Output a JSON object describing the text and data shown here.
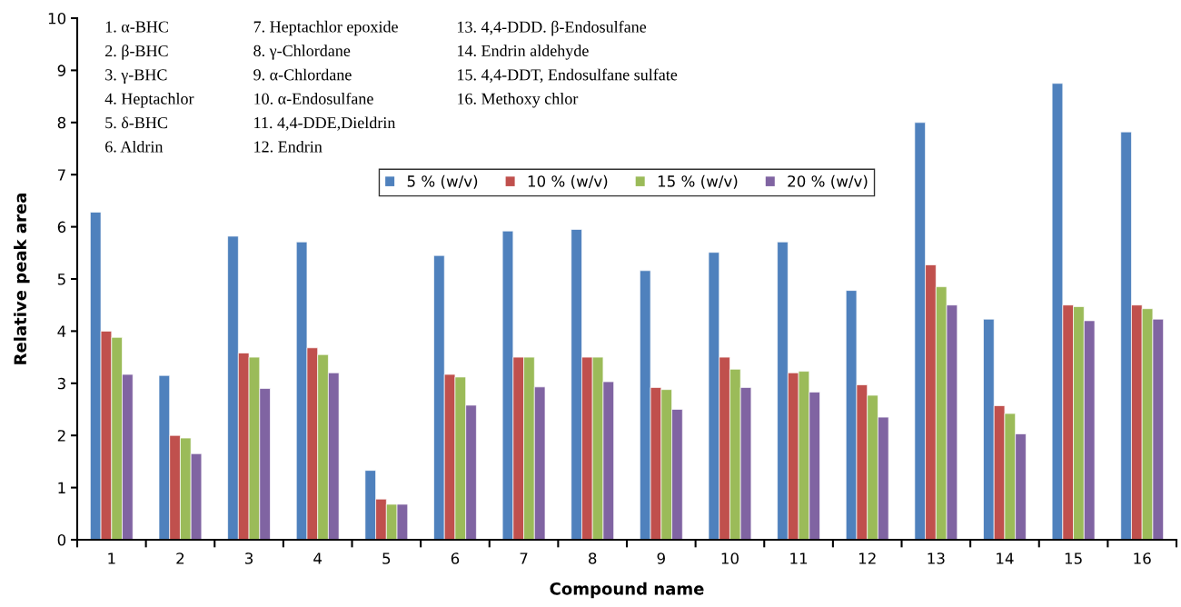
{
  "chart_data": {
    "type": "bar",
    "xlabel": "Compound name",
    "ylabel": "Relative peak area",
    "categories": [
      "1",
      "2",
      "3",
      "4",
      "5",
      "6",
      "7",
      "8",
      "9",
      "10",
      "11",
      "12",
      "13",
      "14",
      "15",
      "16"
    ],
    "series": [
      {
        "name": "5 % (w/v)",
        "color": "#4f81bd",
        "values": [
          6.28,
          3.15,
          5.82,
          5.71,
          1.33,
          5.45,
          5.92,
          5.95,
          5.16,
          5.51,
          5.71,
          4.78,
          8.0,
          4.23,
          8.75,
          7.82
        ]
      },
      {
        "name": "10 % (w/v)",
        "color": "#c0504d",
        "values": [
          4.0,
          2.0,
          3.58,
          3.68,
          0.78,
          3.17,
          3.5,
          3.5,
          2.92,
          3.5,
          3.2,
          2.97,
          5.27,
          2.57,
          4.5,
          4.5
        ]
      },
      {
        "name": "15 % (w/v)",
        "color": "#9bbb59",
        "values": [
          3.88,
          1.95,
          3.5,
          3.55,
          0.68,
          3.12,
          3.5,
          3.5,
          2.88,
          3.27,
          3.23,
          2.77,
          4.85,
          2.42,
          4.47,
          4.43
        ]
      },
      {
        "name": "20 % (w/v)",
        "color": "#8064a2",
        "values": [
          3.17,
          1.65,
          2.9,
          3.2,
          0.68,
          2.58,
          2.93,
          3.03,
          2.5,
          2.92,
          2.83,
          2.35,
          4.5,
          2.03,
          4.2,
          4.23
        ]
      }
    ],
    "ylim": [
      0,
      10
    ],
    "yticks": [
      0,
      1,
      2,
      3,
      4,
      5,
      6,
      7,
      8,
      9,
      10
    ],
    "grid": false,
    "legend": "top",
    "annotations": [
      "1. α-BHC",
      "2. β-BHC",
      "3. γ-BHC",
      "4. Heptachlor",
      "5. δ-BHC",
      "6. Aldrin",
      "7. Heptachlor epoxide",
      "8. γ-Chlordane",
      "9. α-Chlordane",
      "10. α-Endosulfane",
      "11. 4,4-DDE,Dieldrin",
      "12. Endrin",
      "13. 4,4-DDD. β-Endosulfane",
      "14. Endrin aldehyde",
      "15. 4,4-DDT, Endosulfane sulfate",
      "16. Methoxy chlor"
    ]
  }
}
